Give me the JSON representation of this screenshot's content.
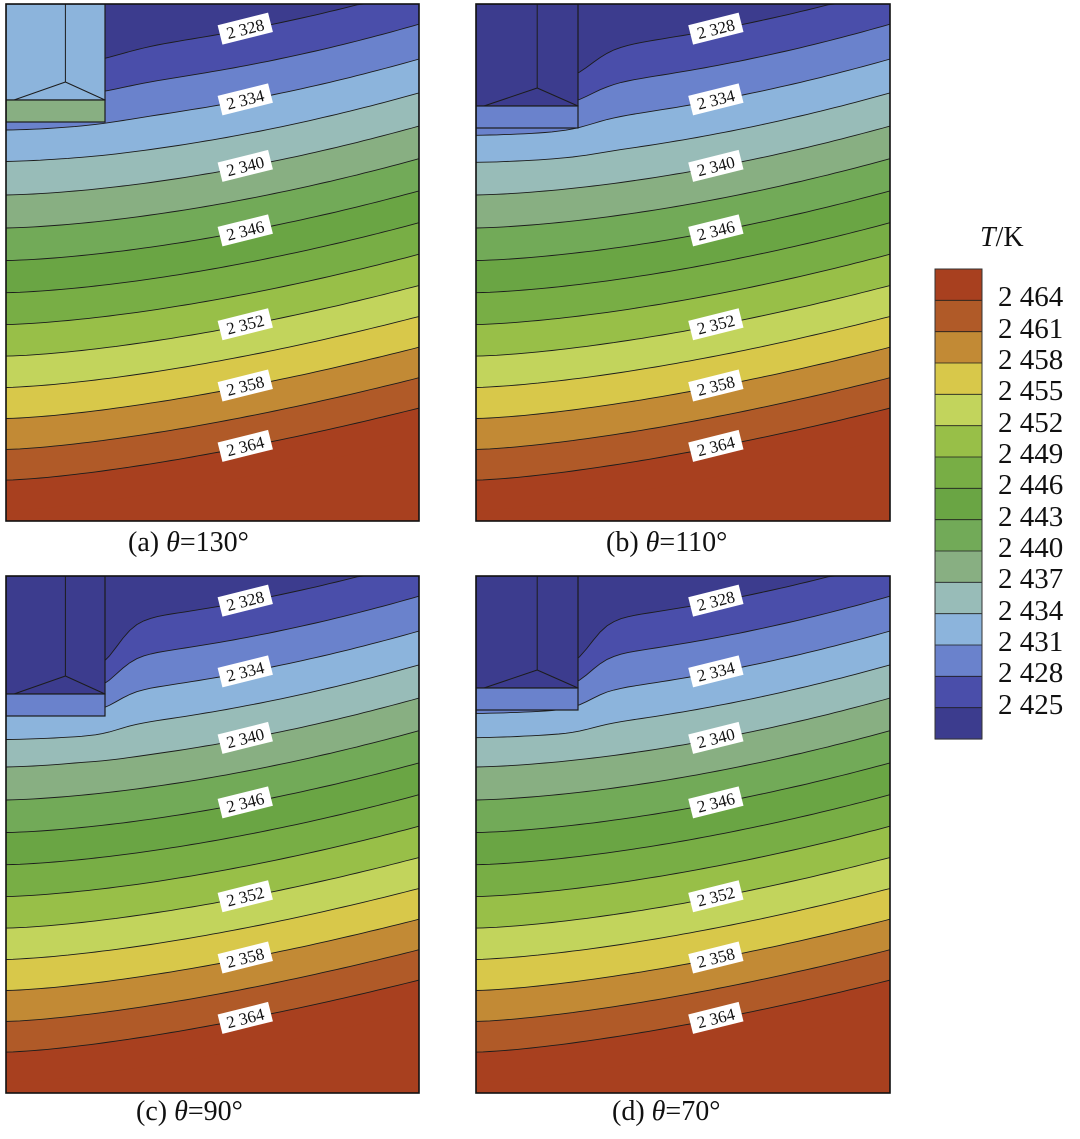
{
  "chart_data": [
    {
      "type": "heatmap",
      "panel": "a",
      "caption_prefix": "(a) ",
      "caption_var": "θ",
      "caption_value": "=130°",
      "contour_labels": [
        "2 328",
        "2 334",
        "2 340",
        "2 346",
        "2 352",
        "2 358",
        "2 364"
      ]
    },
    {
      "type": "heatmap",
      "panel": "b",
      "caption_prefix": "(b) ",
      "caption_var": "θ",
      "caption_value": "=110°",
      "contour_labels": [
        "2 328",
        "2 334",
        "2 340",
        "2 346",
        "2 352",
        "2 358",
        "2 364"
      ]
    },
    {
      "type": "heatmap",
      "panel": "c",
      "caption_prefix": "(c) ",
      "caption_var": "θ",
      "caption_value": "=90°",
      "contour_labels": [
        "2 328",
        "2 334",
        "2 340",
        "2 346",
        "2 352",
        "2 358",
        "2 364"
      ]
    },
    {
      "type": "heatmap",
      "panel": "d",
      "caption_prefix": "(d) ",
      "caption_var": "θ",
      "caption_value": "=70°",
      "contour_labels": [
        "2 328",
        "2 334",
        "2 340",
        "2 346",
        "2 352",
        "2 358",
        "2 364"
      ]
    }
  ],
  "legend": {
    "title_var": "T",
    "title_unit": "/K",
    "ticks": [
      "2 464",
      "2 461",
      "2 458",
      "2 455",
      "2 452",
      "2 449",
      "2 446",
      "2 443",
      "2 440",
      "2 437",
      "2 434",
      "2 431",
      "2 428",
      "2 425"
    ],
    "colors": [
      "#a8401f",
      "#b05a28",
      "#c28a35",
      "#d8c84a",
      "#c2d45c",
      "#98bf48",
      "#78ae45",
      "#6aa544",
      "#72aa58",
      "#88af82",
      "#98bcb8",
      "#8cb4dc",
      "#6a82cc",
      "#4a4eaa",
      "#3c3c8e"
    ]
  }
}
